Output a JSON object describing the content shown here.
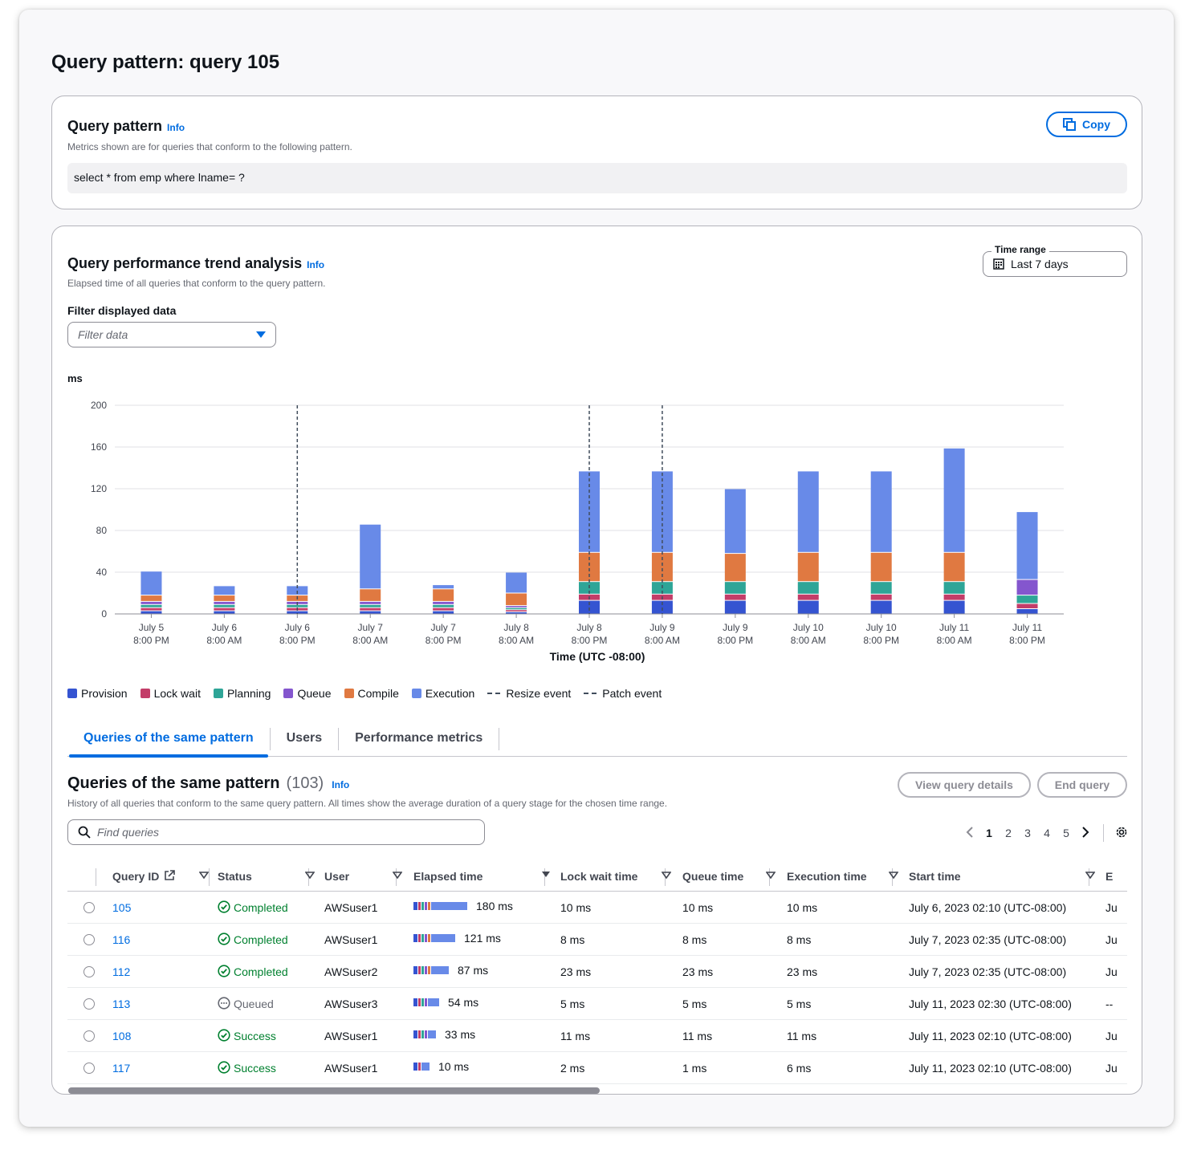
{
  "page_title": "Query pattern: query 105",
  "query_pattern": {
    "title": "Query pattern",
    "info": "Info",
    "description": "Metrics shown are for queries that conform to the following pattern.",
    "pattern": "select * from emp where lname= ?",
    "copy_label": "Copy"
  },
  "trend": {
    "title": "Query performance trend analysis",
    "info": "Info",
    "description": "Elapsed time of all queries that conform to the query pattern.",
    "time_range_label": "Time range",
    "time_range_value": "Last 7 days",
    "filter_label": "Filter displayed data",
    "filter_placeholder": "Filter data"
  },
  "chart_data": {
    "type": "bar",
    "stacked": true,
    "ylabel": "ms",
    "xlabel": "Time (UTC -08:00)",
    "ylim": [
      0,
      200
    ],
    "yticks": [
      0,
      40,
      80,
      120,
      160,
      200
    ],
    "grid": true,
    "categories": [
      [
        "July 5",
        "8:00 PM"
      ],
      [
        "July 6",
        "8:00 AM"
      ],
      [
        "July 6",
        "8:00 PM"
      ],
      [
        "July 7",
        "8:00 AM"
      ],
      [
        "July 7",
        "8:00 PM"
      ],
      [
        "July 8",
        "8:00 AM"
      ],
      [
        "July 8",
        "8:00 PM"
      ],
      [
        "July 9",
        "8:00 AM"
      ],
      [
        "July 9",
        "8:00 PM"
      ],
      [
        "July 10",
        "8:00 AM"
      ],
      [
        "July 10",
        "8:00 PM"
      ],
      [
        "July 11",
        "8:00 AM"
      ],
      [
        "July 11",
        "8:00 PM"
      ]
    ],
    "series": [
      {
        "name": "Provision",
        "color": "#3554d1",
        "values": [
          3,
          3,
          3,
          3,
          3,
          2,
          13,
          13,
          13,
          13,
          13,
          13,
          5
        ]
      },
      {
        "name": "Lock wait",
        "color": "#c33d69",
        "values": [
          3,
          3,
          3,
          3,
          3,
          2,
          6,
          6,
          6,
          6,
          6,
          6,
          5
        ]
      },
      {
        "name": "Planning",
        "color": "#2ea597",
        "values": [
          3,
          3,
          3,
          3,
          3,
          2,
          12,
          12,
          12,
          12,
          12,
          12,
          8
        ]
      },
      {
        "name": "Queue",
        "color": "#8456ce",
        "values": [
          3,
          3,
          3,
          3,
          3,
          2,
          0,
          0,
          0,
          0,
          0,
          0,
          15
        ]
      },
      {
        "name": "Compile",
        "color": "#e07941",
        "values": [
          6,
          6,
          6,
          12,
          12,
          12,
          28,
          28,
          27,
          28,
          28,
          28,
          0
        ]
      },
      {
        "name": "Execution",
        "color": "#688ae8",
        "values": [
          23,
          9,
          9,
          62,
          4,
          20,
          78,
          78,
          62,
          78,
          78,
          100,
          65
        ]
      }
    ],
    "events": [
      {
        "type": "Resize event",
        "category_index": 2
      },
      {
        "type": "Patch event",
        "category_index": 6
      },
      {
        "type": "Patch event",
        "category_index": 7
      }
    ],
    "legend": [
      "Provision",
      "Lock wait",
      "Planning",
      "Queue",
      "Compile",
      "Execution",
      "Resize event",
      "Patch event"
    ],
    "legend_position": "bottom"
  },
  "tabs": [
    {
      "label": "Queries of the same pattern",
      "active": true
    },
    {
      "label": "Users",
      "active": false
    },
    {
      "label": "Performance metrics",
      "active": false
    }
  ],
  "queries": {
    "title": "Queries of the same pattern",
    "count": "(103)",
    "info": "Info",
    "description": "History of all queries that conform to the same query pattern. All times show the average duration of a query stage for the chosen time range.",
    "view_details_label": "View query details",
    "end_query_label": "End query",
    "search_placeholder": "Find queries",
    "pages": [
      "1",
      "2",
      "3",
      "4",
      "5"
    ],
    "current_page": "1",
    "columns": [
      "Query ID",
      "Status",
      "User",
      "Elapsed time",
      "Lock wait time",
      "Queue time",
      "Execution time",
      "Start time",
      "E"
    ],
    "rows": [
      {
        "id": "105",
        "status": "Completed",
        "status_type": "ok",
        "user": "AWSuser1",
        "elapsed": "180 ms",
        "elapsed_ms": 180,
        "lock": "10 ms",
        "queue": "10 ms",
        "exec": "10 ms",
        "start": "July 6, 2023 02:10 (UTC-08:00)",
        "end": "Ju"
      },
      {
        "id": "116",
        "status": "Completed",
        "status_type": "ok",
        "user": "AWSuser1",
        "elapsed": "121 ms",
        "elapsed_ms": 121,
        "lock": "8 ms",
        "queue": "8 ms",
        "exec": "8 ms",
        "start": "July 7, 2023 02:35 (UTC-08:00)",
        "end": "Ju"
      },
      {
        "id": "112",
        "status": "Completed",
        "status_type": "ok",
        "user": "AWSuser2",
        "elapsed": "87 ms",
        "elapsed_ms": 87,
        "lock": "23 ms",
        "queue": "23 ms",
        "exec": "23 ms",
        "start": "July 7, 2023 02:35 (UTC-08:00)",
        "end": "Ju"
      },
      {
        "id": "113",
        "status": "Queued",
        "status_type": "queued",
        "user": "AWSuser3",
        "elapsed": "54 ms",
        "elapsed_ms": 54,
        "lock": "5 ms",
        "queue": "5 ms",
        "exec": "5 ms",
        "start": "July 11, 2023 02:30 (UTC-08:00)",
        "end": "--"
      },
      {
        "id": "108",
        "status": "Success",
        "status_type": "ok",
        "user": "AWSuser1",
        "elapsed": "33 ms",
        "elapsed_ms": 33,
        "lock": "11 ms",
        "queue": "11 ms",
        "exec": "11 ms",
        "start": "July 11, 2023 02:10 (UTC-08:00)",
        "end": "Ju"
      },
      {
        "id": "117",
        "status": "Success",
        "status_type": "ok",
        "user": "AWSuser1",
        "elapsed": "10 ms",
        "elapsed_ms": 10,
        "lock": "2 ms",
        "queue": "1 ms",
        "exec": "6 ms",
        "start": "July 11, 2023 02:10 (UTC-08:00)",
        "end": "Ju"
      }
    ]
  }
}
